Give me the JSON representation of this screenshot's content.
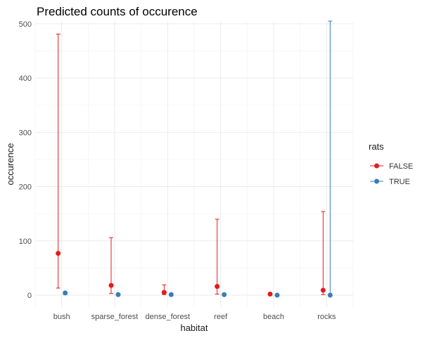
{
  "chart_data": {
    "type": "scatter",
    "title": "Predicted counts of occurence",
    "xlabel": "habitat",
    "ylabel": "occurence",
    "categories": [
      "bush",
      "sparse_forest",
      "dense_forest",
      "reef",
      "beach",
      "rocks"
    ],
    "ylim": [
      -22,
      505
    ],
    "yticks": [
      0,
      100,
      200,
      300,
      400,
      500
    ],
    "grid": true,
    "legend": {
      "title": "rats",
      "position": "right"
    },
    "series": [
      {
        "name": "FALSE",
        "color": "#e41a1c",
        "values": [
          77,
          18,
          5,
          16,
          2,
          9
        ],
        "lower": [
          13,
          3,
          1,
          2,
          0,
          1
        ],
        "upper": [
          481,
          106,
          19,
          140,
          3,
          154
        ]
      },
      {
        "name": "TRUE",
        "color": "#377eb8",
        "values": [
          4,
          1,
          1,
          1,
          0,
          0
        ],
        "lower": [
          1,
          0,
          0,
          0,
          0,
          0
        ],
        "upper": [
          6,
          2,
          2,
          2,
          1,
          505
        ]
      }
    ]
  }
}
